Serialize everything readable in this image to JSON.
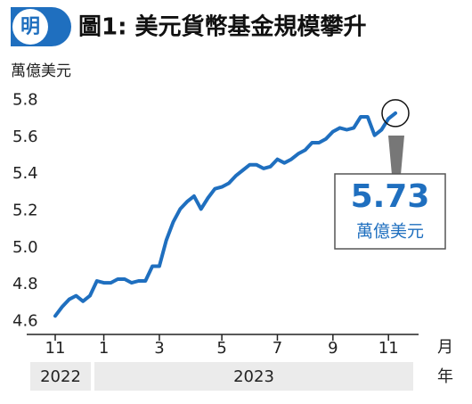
{
  "logo": "明",
  "chart_data": {
    "type": "line",
    "title": "圖1: 美元貨幣基金規模攀升",
    "y_label": "萬億美元",
    "categories": [
      "11",
      null,
      null,
      null,
      null,
      null,
      null,
      "1",
      null,
      null,
      null,
      null,
      null,
      null,
      null,
      "3",
      null,
      null,
      null,
      null,
      null,
      null,
      null,
      null,
      "5",
      null,
      null,
      null,
      null,
      null,
      null,
      null,
      "7",
      null,
      null,
      null,
      null,
      null,
      null,
      null,
      "9",
      null,
      null,
      null,
      null,
      null,
      null,
      null,
      "11",
      null
    ],
    "x_unit": "月",
    "x_groups": [
      "2022",
      "2023"
    ],
    "x_group_unit": "年",
    "series": [
      {
        "name": null,
        "color": "#1f6fbf",
        "values": [
          4.63,
          4.68,
          4.72,
          4.74,
          4.71,
          4.74,
          4.82,
          4.81,
          4.81,
          4.83,
          4.83,
          4.81,
          4.82,
          4.82,
          4.9,
          4.9,
          5.04,
          5.14,
          5.21,
          5.25,
          5.28,
          5.21,
          5.27,
          5.32,
          5.33,
          5.35,
          5.39,
          5.42,
          5.45,
          5.45,
          5.43,
          5.44,
          5.48,
          5.46,
          5.48,
          5.51,
          5.53,
          5.57,
          5.57,
          5.59,
          5.63,
          5.65,
          5.64,
          5.65,
          5.71,
          5.71,
          5.61,
          5.64,
          5.7,
          5.73
        ]
      }
    ],
    "ylim": [
      4.53,
      5.86
    ],
    "yticks": [
      4.6,
      4.8,
      {
        "value": 5,
        "label": "5.0"
      },
      5.2,
      5.4,
      5.6,
      5.8
    ],
    "annotation": {
      "value": "5.73",
      "unit": "萬億美元"
    }
  }
}
